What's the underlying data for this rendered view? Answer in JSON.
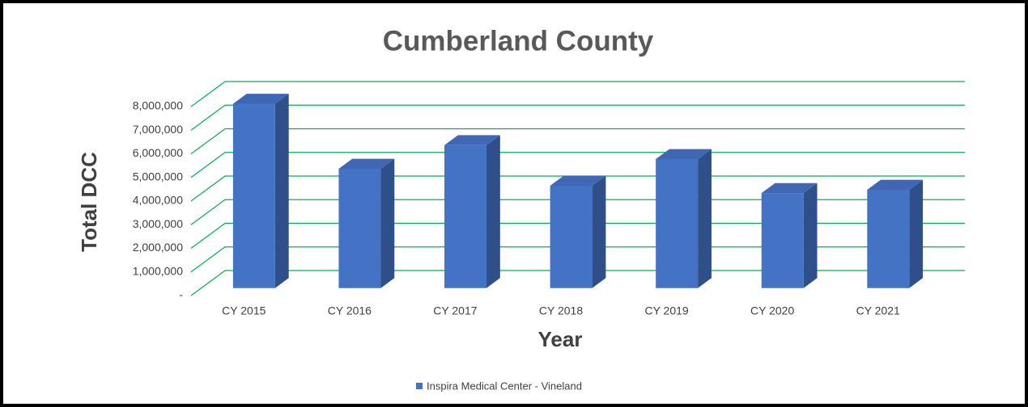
{
  "chart_data": {
    "type": "bar3d",
    "title": "Cumberland County",
    "x_label": "Year",
    "y_label": "Total DCC",
    "categories": [
      "CY 2015",
      "CY 2016",
      "CY 2017",
      "CY 2018",
      "CY 2019",
      "CY 2020",
      "CY 2021"
    ],
    "series": [
      {
        "name": "Inspira Medical Center - Vineland",
        "color": "#4472c4",
        "values": [
          7800000,
          5050000,
          6050000,
          4330000,
          5460000,
          4020000,
          4160000
        ]
      }
    ],
    "ylim": [
      0,
      8000000
    ],
    "yticks": [
      {
        "value": 0,
        "label": "-"
      },
      {
        "value": 1000000,
        "label": "1,000,000"
      },
      {
        "value": 2000000,
        "label": "2,000,000"
      },
      {
        "value": 3000000,
        "label": "3,000,000"
      },
      {
        "value": 4000000,
        "label": "4,000,000"
      },
      {
        "value": 5000000,
        "label": "5,000,000"
      },
      {
        "value": 6000000,
        "label": "6,000,000"
      },
      {
        "value": 7000000,
        "label": "7,000,000"
      },
      {
        "value": 8000000,
        "label": "8,000,000"
      }
    ],
    "grid": true,
    "grid_color": "#00b050",
    "legend": "bottom"
  }
}
